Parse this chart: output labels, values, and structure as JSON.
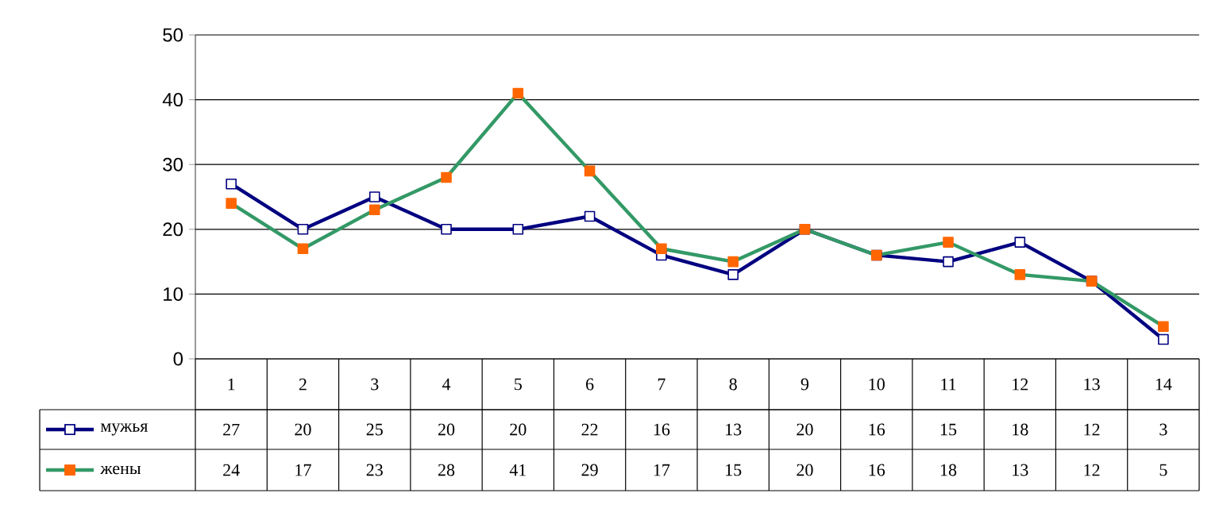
{
  "chart_data": {
    "type": "line",
    "categories": [
      "1",
      "2",
      "3",
      "4",
      "5",
      "6",
      "7",
      "8",
      "9",
      "10",
      "11",
      "12",
      "13",
      "14"
    ],
    "series": [
      {
        "name": "мужья",
        "color": "#000080",
        "values": [
          27,
          20,
          25,
          20,
          20,
          22,
          16,
          13,
          20,
          16,
          15,
          18,
          12,
          3
        ]
      },
      {
        "name": "жены",
        "color": "#339966",
        "values": [
          24,
          17,
          23,
          28,
          41,
          29,
          17,
          15,
          20,
          16,
          18,
          13,
          12,
          5
        ]
      }
    ],
    "ylim": [
      0,
      50
    ],
    "yticks": [
      0,
      10,
      20,
      30,
      40,
      50
    ],
    "grid": "y",
    "marker": "square",
    "line_style": "solid",
    "data_labels": true,
    "legend": "bottom"
  }
}
